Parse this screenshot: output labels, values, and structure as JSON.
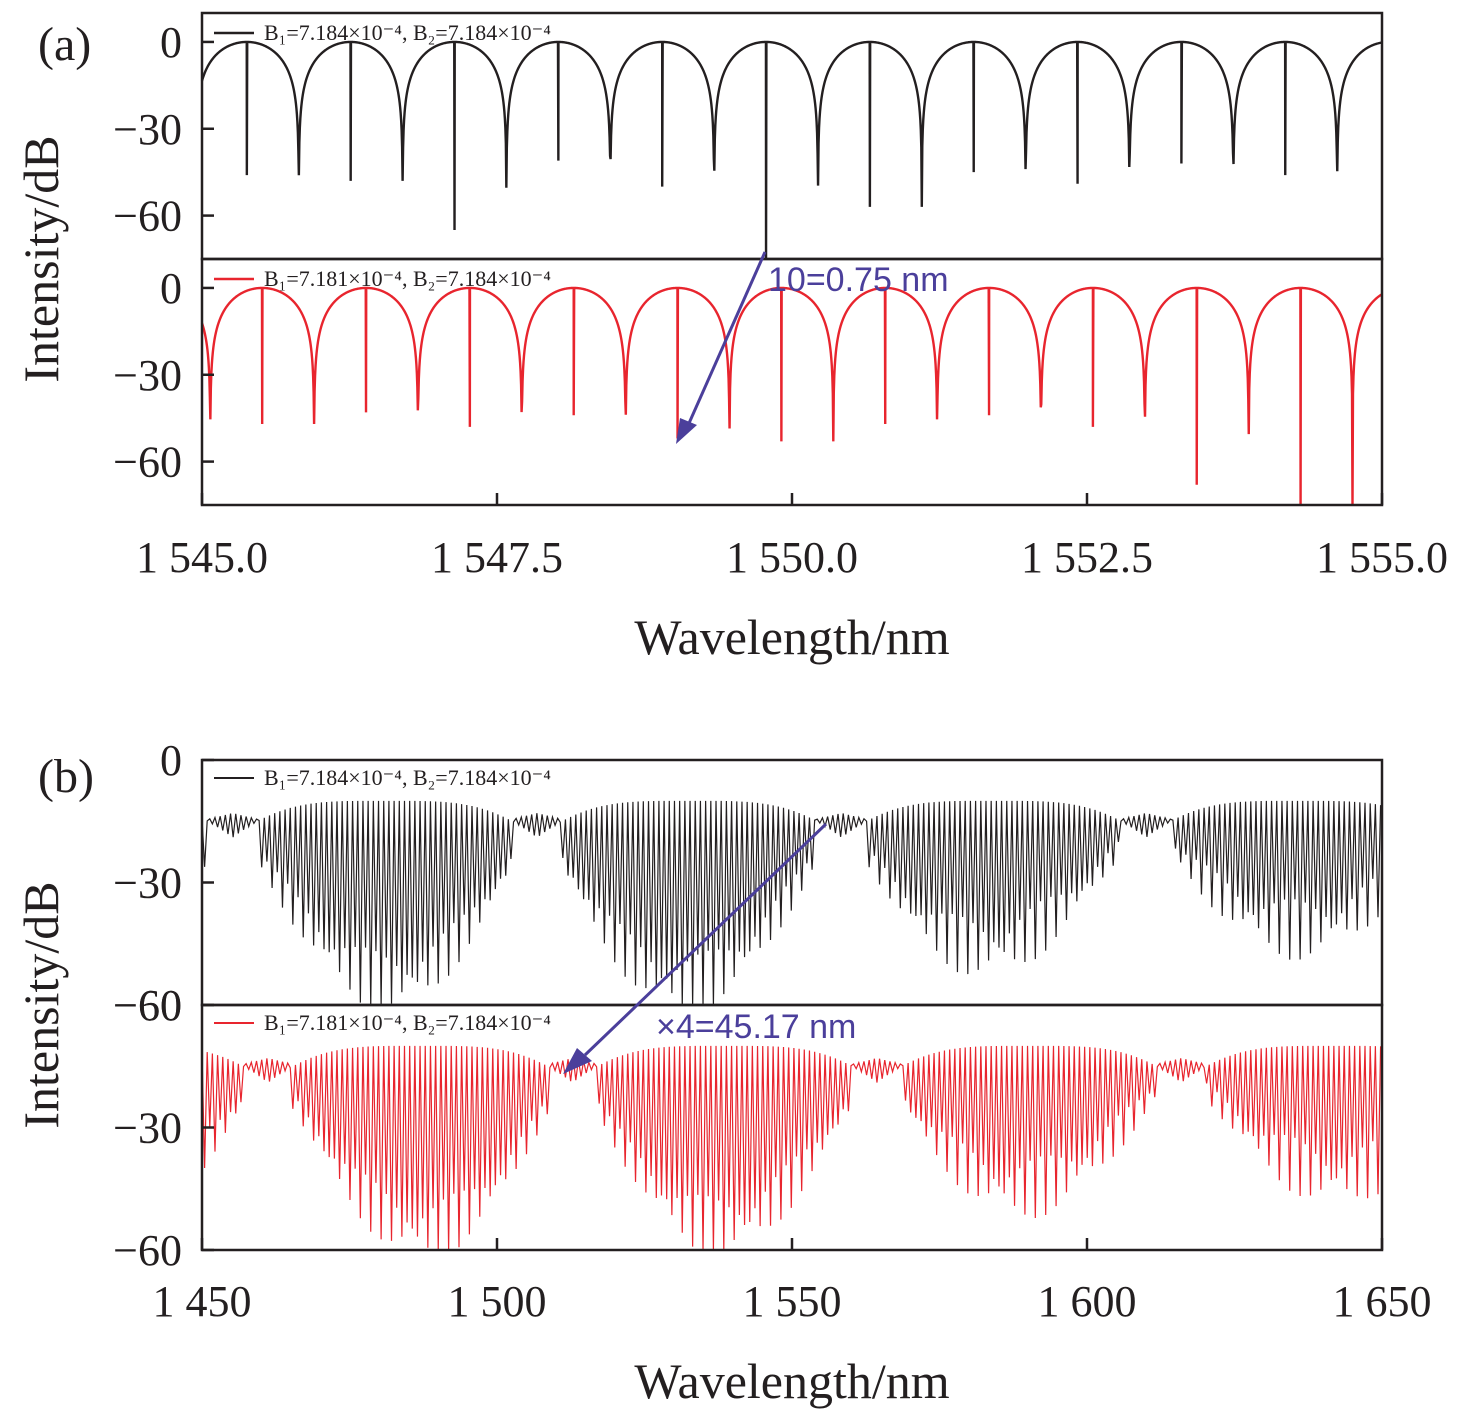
{
  "colors": {
    "black": "#231f20",
    "red": "#e8252e",
    "arrow": "#4b3f9b"
  },
  "chart_data": [
    {
      "panel_label": "(a)",
      "type": "line",
      "xlabel": "Wavelength/nm",
      "ylabel": "Intensity/dB",
      "xlim": [
        1545.0,
        1555.0
      ],
      "xticks": [
        "1 545.0",
        "1 547.5",
        "1 550.0",
        "1 552.5",
        "1 555.0"
      ],
      "subplots": [
        {
          "ylim": [
            -75,
            10
          ],
          "yticks": [
            "0",
            "−30",
            "−60"
          ],
          "series": [
            {
              "name": "B₁=7.184×10⁻⁴, B₂=7.184×10⁻⁴",
              "color": "#231f20",
              "dip_wavelengths": [
                1545.38,
                1546.26,
                1547.14,
                1548.02,
                1548.9,
                1549.78,
                1550.66,
                1551.54,
                1552.42,
                1553.3,
                1554.18
              ],
              "dip_depths": [
                -46,
                -48,
                -65,
                -41,
                -50,
                -75,
                -57,
                -45,
                -49,
                -42,
                -46
              ],
              "max_intensity": 0
            }
          ]
        },
        {
          "ylim": [
            -75,
            10
          ],
          "yticks": [
            "0",
            "−30",
            "−60"
          ],
          "series": [
            {
              "name": "B₁=7.181×10⁻⁴, B₂=7.184×10⁻⁴",
              "color": "#e8252e",
              "dip_wavelengths": [
                1545.51,
                1546.39,
                1547.27,
                1548.15,
                1549.03,
                1549.91,
                1550.79,
                1551.67,
                1552.55,
                1553.43,
                1554.31
              ],
              "dip_depths": [
                -47,
                -43,
                -48,
                -44,
                -52,
                -53,
                -47,
                -44,
                -48,
                -68,
                -75
              ],
              "max_intensity": 0
            }
          ]
        }
      ],
      "annotation": "10=0.75 nm"
    },
    {
      "panel_label": "(b)",
      "type": "line",
      "xlabel": "Wavelength/nm",
      "ylabel": "Intensity/dB",
      "xlim": [
        1450,
        1650
      ],
      "xticks": [
        "1 450",
        "1 500",
        "1 550",
        "1 600",
        "1 650"
      ],
      "subplots": [
        {
          "ylim": [
            -60,
            0
          ],
          "yticks": [
            "0",
            "−30",
            "−60"
          ],
          "series": [
            {
              "name": "B₁=7.184×10⁻⁴, B₂=7.184×10⁻⁴",
              "color": "#231f20",
              "fringe_spacing_nm": 0.88,
              "envelope_period_nm": 51.6,
              "envelope_peaks_nm": [
                1481,
                1532.6,
                1584.2,
                1635.8
              ],
              "envelope_crossings_nm": [
                1455.2,
                1506.8,
                1558.4,
                1610
              ],
              "max_intensity": -10,
              "min_intensity": -60
            }
          ]
        },
        {
          "ylim": [
            -60,
            0
          ],
          "yticks": [
            "−60",
            "−30",
            "−60"
          ],
          "series": [
            {
              "name": "B₁=7.181×10⁻⁴, B₂=7.184×10⁻⁴",
              "color": "#e8252e",
              "fringe_spacing_nm": 0.88,
              "envelope_period_nm": 51.6,
              "envelope_peaks_nm": [
                1487,
                1538.6,
                1590.2,
                1641.8
              ],
              "envelope_crossings_nm": [
                1461.2,
                1512.8,
                1564.4,
                1616
              ],
              "max_intensity": -10,
              "min_intensity": -60
            }
          ]
        }
      ],
      "annotation": "×4=45.17 nm"
    }
  ]
}
